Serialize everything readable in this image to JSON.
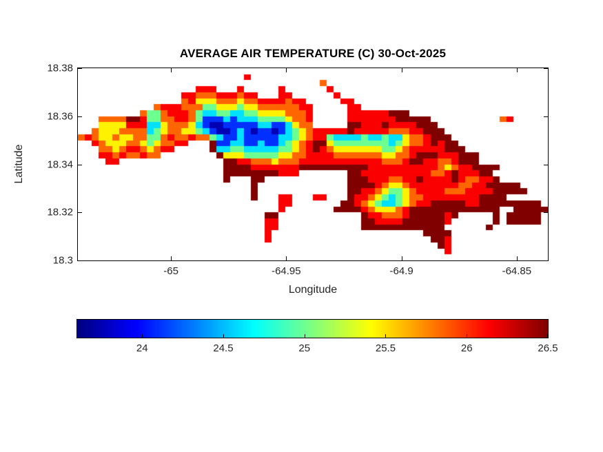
{
  "chart_data": {
    "type": "heatmap",
    "title": "AVERAGE AIR TEMPERATURE (C) 30-Oct-2025",
    "xlabel": "Longitude",
    "ylabel": "Latitude",
    "xlim": [
      -65.0404,
      -64.8365
    ],
    "ylim": [
      18.3,
      18.38
    ],
    "xticks": [
      {
        "v": -65,
        "label": "-65"
      },
      {
        "v": -64.95,
        "label": "-64.95"
      },
      {
        "v": -64.9,
        "label": "-64.9"
      },
      {
        "v": -64.85,
        "label": "-64.85"
      }
    ],
    "yticks": [
      {
        "v": 18.38,
        "label": "18.38"
      },
      {
        "v": 18.36,
        "label": "18.36"
      },
      {
        "v": 18.34,
        "label": "18.34"
      },
      {
        "v": 18.32,
        "label": "18.32"
      },
      {
        "v": 18.3,
        "label": "18.3"
      }
    ],
    "colormap": "jet",
    "value_range": [
      23.6,
      26.5
    ],
    "colorbar_ticks": [
      {
        "v": 24,
        "label": "24"
      },
      {
        "v": 24.5,
        "label": "24.5"
      },
      {
        "v": 25,
        "label": "25"
      },
      {
        "v": 25.5,
        "label": "25.5"
      },
      {
        "v": 26,
        "label": "26"
      },
      {
        "v": 26.5,
        "label": "26.5"
      }
    ],
    "grid_cols": 68,
    "no_data_char": ".",
    "levels": {
      "1": 23.75,
      "2": 24.1,
      "3": 24.6,
      "4": 25.0,
      "5": 25.45,
      "6": 25.85,
      "7": 26.15,
      "8": 26.5
    },
    "grid": [
      "....................................................................",
      "........................7...........................................",
      "...................................6................................",
      ".................777...7.....7......7...............................",
      "...............77666777677...77......7..............................",
      "...............675556665667777677.....77............................",
      "...........67776664455545566666677.....77...........................",
      ".........6446777643344334455556667.....777777888....................",
      "...6666887446677642223233344445667.....777777788888..........67.....",
      "...5555777335666532112222233223566.....8877787777888................",
      "..655566663456655432112321221234567777787777766677888...............",
      "676556556644676676643223222223345677433334334335667888..............",
      "..76555665456677...8223322322345678854444444434566787 88.............",
      "...66567765677.....833443333344567876555555544567777 7888............",
      "...776766766........85554444455667777666666655667888 777888..........",
      "....77...............887766656667777777777776667887 7667888..........",
      ".....................888877777778888888888777777777 7656778888.......",
      ".....................88888888777.......887777777777 667877788........",
      ".....................8...88............8887776677877 778766778.......",
      ".........................8.............888876556777 7777667788888....",
      ".........................8.............887765445677 7766677778 8888...",
      ".........................8...77...77...87765434566777777778888......",
      ".............................77.......887654334567788888778888 88888.",
      ".............................7.......888876555678888888888888..88888.",
      "...........................88............87766678888878.....8.88888.",
      "...........................77............8877778888887......8.88888.",
      "...........................77............888888888888......8.......",
      "...........................7......................8888..............",
      "...........................7.......................887..............",
      "....................................................87..............",
      ".....................................................7..............",
      "...................................................................."
    ]
  },
  "colors": {
    "background": "#ffffff",
    "axis": "#000000",
    "label_text": "#262626",
    "title_text": "#000000"
  }
}
